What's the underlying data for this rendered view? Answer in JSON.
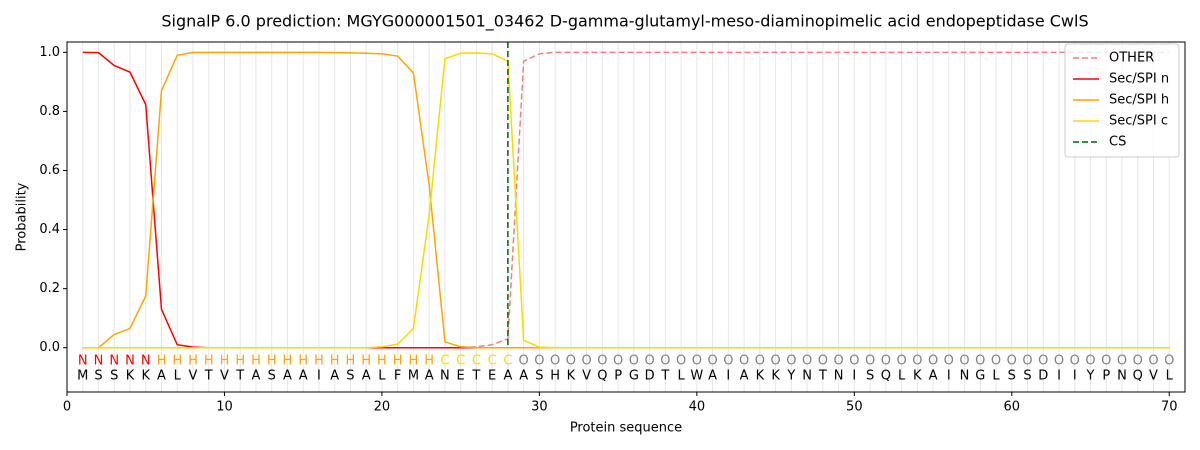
{
  "chart_data": {
    "type": "line",
    "title": "SignalP 6.0 prediction: MGYG000001501_03462 D-gamma-glutamyl-meso-diaminopimelic acid endopeptidase CwlS",
    "xlabel": "Protein sequence",
    "ylabel": "Probability",
    "x": [
      1,
      2,
      3,
      4,
      5,
      6,
      7,
      8,
      9,
      10,
      11,
      12,
      13,
      14,
      15,
      16,
      17,
      18,
      19,
      20,
      21,
      22,
      23,
      24,
      25,
      26,
      27,
      28,
      29,
      30,
      31,
      32,
      33,
      34,
      35,
      36,
      37,
      38,
      39,
      40,
      41,
      42,
      43,
      44,
      45,
      46,
      47,
      48,
      49,
      50,
      51,
      52,
      53,
      54,
      55,
      56,
      57,
      58,
      59,
      60,
      61,
      62,
      63,
      64,
      65,
      66,
      67,
      68,
      69,
      70
    ],
    "xlim": [
      0,
      71
    ],
    "ylim": [
      -0.15,
      1.035
    ],
    "xticks": [
      0,
      10,
      20,
      30,
      40,
      50,
      60,
      70
    ],
    "yticks": [
      {
        "value": 0,
        "label": "0.0"
      },
      {
        "value": 0.2,
        "label": "0.2"
      },
      {
        "value": 0.4,
        "label": "0.4"
      },
      {
        "value": 0.6,
        "label": "0.6"
      },
      {
        "value": 0.8,
        "label": "0.8"
      },
      {
        "value": 1,
        "label": "1.0"
      }
    ],
    "grid": true,
    "legend": "upper right",
    "series": [
      {
        "name": "OTHER",
        "color": "#f08080",
        "linestyle": "dashed",
        "values": [
          0,
          0,
          0,
          0,
          0,
          0,
          0,
          0,
          0,
          0,
          0,
          0,
          0,
          0,
          0,
          0,
          0,
          0,
          0,
          0,
          0,
          0,
          0,
          0,
          0,
          0.003,
          0.01,
          0.03,
          0.97,
          0.995,
          1,
          1,
          1,
          1,
          1,
          1,
          1,
          1,
          1,
          1,
          1,
          1,
          1,
          1,
          1,
          1,
          1,
          1,
          1,
          1,
          1,
          1,
          1,
          1,
          1,
          1,
          1,
          1,
          1,
          1,
          1,
          1,
          1,
          1,
          1,
          1,
          1,
          1,
          1,
          1
        ]
      },
      {
        "name": "Sec/SPI n",
        "color": "#ff0000",
        "linestyle": "solid",
        "values": [
          1.0,
          0.999,
          0.955,
          0.933,
          0.823,
          0.13,
          0.01,
          0.002,
          0,
          0,
          0,
          0,
          0,
          0,
          0,
          0,
          0,
          0,
          0,
          0,
          0,
          0,
          0,
          0,
          0,
          0,
          0,
          0,
          0,
          0,
          0,
          0,
          0,
          0,
          0,
          0,
          0,
          0,
          0,
          0,
          0,
          0,
          0,
          0,
          0,
          0,
          0,
          0,
          0,
          0,
          0,
          0,
          0,
          0,
          0,
          0,
          0,
          0,
          0,
          0,
          0,
          0,
          0,
          0,
          0,
          0,
          0,
          0,
          0,
          0
        ]
      },
      {
        "name": "Sec/SPI h",
        "color": "#ffa500",
        "linestyle": "solid",
        "values": [
          0,
          0,
          0.045,
          0.065,
          0.175,
          0.87,
          0.99,
          1,
          1,
          1,
          1,
          1,
          1,
          1,
          1,
          1,
          0.999,
          0.998,
          0.997,
          0.995,
          0.987,
          0.93,
          0.55,
          0.02,
          0.003,
          0,
          0,
          0,
          0,
          0,
          0,
          0,
          0,
          0,
          0,
          0,
          0,
          0,
          0,
          0,
          0,
          0,
          0,
          0,
          0,
          0,
          0,
          0,
          0,
          0,
          0,
          0,
          0,
          0,
          0,
          0,
          0,
          0,
          0,
          0,
          0,
          0,
          0,
          0,
          0,
          0,
          0,
          0,
          0,
          0
        ]
      },
      {
        "name": "Sec/SPI c",
        "color": "#ffd700",
        "linestyle": "solid",
        "values": [
          0,
          0,
          0,
          0,
          0,
          0,
          0,
          0,
          0,
          0,
          0,
          0,
          0,
          0,
          0,
          0,
          0,
          0,
          0,
          0.003,
          0.012,
          0.065,
          0.45,
          0.978,
          0.997,
          0.998,
          0.995,
          0.97,
          0.025,
          0.002,
          0,
          0,
          0,
          0,
          0,
          0,
          0,
          0,
          0,
          0,
          0,
          0,
          0,
          0,
          0,
          0,
          0,
          0,
          0,
          0,
          0,
          0,
          0,
          0,
          0,
          0,
          0,
          0,
          0,
          0,
          0,
          0,
          0,
          0,
          0,
          0,
          0,
          0,
          0,
          0
        ]
      }
    ],
    "cs": {
      "name": "CS",
      "x": 28,
      "color": "#006400",
      "linestyle": "dashed"
    },
    "label_colors": {
      "N": "#ff0000",
      "H": "#ffa500",
      "C": "#ffd700",
      "O": "#808080"
    },
    "residue_labels": [
      "N",
      "N",
      "N",
      "N",
      "N",
      "H",
      "H",
      "H",
      "H",
      "H",
      "H",
      "H",
      "H",
      "H",
      "H",
      "H",
      "H",
      "H",
      "H",
      "H",
      "H",
      "H",
      "H",
      "C",
      "C",
      "C",
      "C",
      "C",
      "O",
      "O",
      "O",
      "O",
      "O",
      "O",
      "O",
      "O",
      "O",
      "O",
      "O",
      "O",
      "O",
      "O",
      "O",
      "O",
      "O",
      "O",
      "O",
      "O",
      "O",
      "O",
      "O",
      "O",
      "O",
      "O",
      "O",
      "O",
      "O",
      "O",
      "O",
      "O",
      "O",
      "O",
      "O",
      "O",
      "O",
      "O",
      "O",
      "O",
      "O",
      "O"
    ],
    "sequence": [
      "M",
      "S",
      "S",
      "K",
      "K",
      "A",
      "L",
      "V",
      "T",
      "V",
      "T",
      "A",
      "S",
      "A",
      "A",
      "I",
      "A",
      "S",
      "A",
      "L",
      "F",
      "M",
      "A",
      "N",
      "E",
      "T",
      "E",
      "A",
      "A",
      "S",
      "H",
      "K",
      "V",
      "Q",
      "P",
      "G",
      "D",
      "T",
      "L",
      "W",
      "A",
      "I",
      "A",
      "K",
      "K",
      "Y",
      "N",
      "T",
      "N",
      "I",
      "S",
      "Q",
      "L",
      "K",
      "A",
      "I",
      "N",
      "G",
      "L",
      "S",
      "S",
      "D",
      "I",
      "I",
      "Y",
      "P",
      "N",
      "Q",
      "V",
      "L"
    ]
  }
}
